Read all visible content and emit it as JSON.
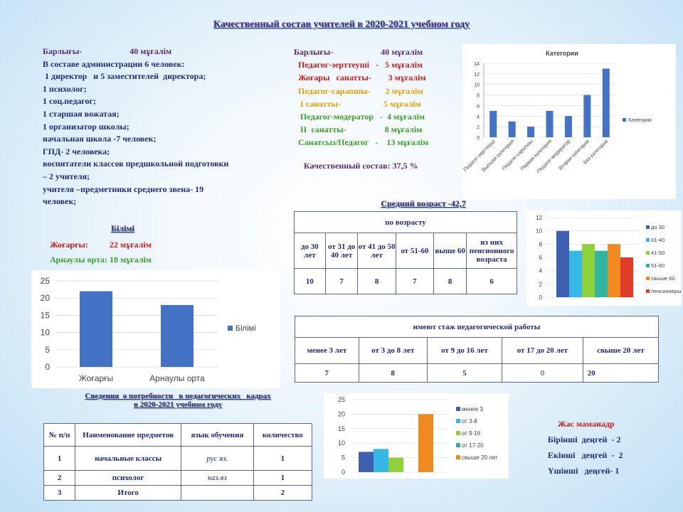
{
  "title": "Качественный состав учителей в 2020-2021  учебном году",
  "left_block": {
    "total_label": "Барлығы-",
    "total_value": "40 мұғалім",
    "lines": [
      "В составе   администрации   6 человек:",
      " 1 директор   и 5 заместителей  директора;",
      "1 психолог;",
      "1 соц.педагог;",
      "1 старшая   вожатая;",
      "1 организатор   школы;",
      "начальная   школа   -7 человек;",
      "ГПД-  2 человека;",
      "воспитатели   классов  предшкольной   подготовки",
      "– 2 учителя;",
      "учителя  –предметники   среднего  звена-  19",
      "человек;"
    ]
  },
  "mid_block": {
    "total_label": "Барлығы-",
    "total_value": "40 мұғалім",
    "lines": [
      {
        "text": "Педагог-зерттеуші   -   5 мұғалім",
        "color": "#d01a1a"
      },
      {
        "text": "Жоғары   санатты-        3 мұғалім",
        "color": "#d01a1a"
      },
      {
        "text": "Педагог-сарапшы-       2 мұғалім",
        "color": "#e8a000"
      },
      {
        "text": " I санатты-                    5 мұғалім",
        "color": "#e8a000"
      },
      {
        "text": " Педагог-модератор   -  4 мұғалім",
        "color": "#3aa02a"
      },
      {
        "text": " II  санатты-                  8 мұғалім",
        "color": "#3aa02a"
      },
      {
        "text": "Санатсыз/Педагог   -    13 мұғалім",
        "color": "#3aa02a"
      }
    ],
    "quality": "Качественный   состав:   37,5 %"
  },
  "education": {
    "heading": "Білімі",
    "higher": "Жоғарғы:          22 мұғалім",
    "special": "Арнаулы  орта:  18 мұғалім"
  },
  "age": {
    "heading": "Средний  возраст  -42,7",
    "table_header": "по  возрасту",
    "columns": [
      "до 30 лет",
      "от 31 до 40 лет",
      "от 41 до 50 лет",
      "от 51-60",
      "выше 60",
      "из них пенсионного возраста"
    ],
    "values": [
      "10",
      "7",
      "8",
      "7",
      "8",
      "6"
    ]
  },
  "experience": {
    "table_header": "имеют  стаж педагогической  работы",
    "columns": [
      "менее 3 лет",
      "от 3 до 8 лет",
      "от 9 до 16 лет",
      "от 17 до 20 лет",
      "свыше  20 лет"
    ],
    "values": [
      "7",
      "8",
      "5",
      "0",
      "20"
    ]
  },
  "needs": {
    "heading_line1": "Сведения  о потребности   в педагогических   кадрах",
    "heading_line2": "в  2020-2021 учебном  году",
    "columns": [
      "№ п/п",
      "Наименование предметов",
      "язык обучения",
      "количество"
    ],
    "rows": [
      [
        "1",
        "начальные классы",
        "рус яз.",
        "1"
      ],
      [
        "2",
        "психолог",
        "каз.яз",
        "1"
      ],
      [
        "3",
        "Итого",
        "",
        "2"
      ]
    ]
  },
  "young": {
    "heading": "Жас  маманадр",
    "lines": [
      "Бірінші  деңгей  - 2",
      "Екінші   деңгей  -  2",
      "Үшінші   деңгей- 1"
    ]
  },
  "chart_data": [
    {
      "type": "bar",
      "title": "Категории",
      "categories": [
        "Педагог-зерттеуші",
        "Высшая категория",
        "Педагог-сарапшы",
        "Первая категория",
        "Педагог-модератор",
        "Вторая категория",
        "Без категории"
      ],
      "series": [
        {
          "name": "Категории",
          "values": [
            5,
            3,
            2,
            5,
            4,
            8,
            13
          ]
        }
      ],
      "ylim": [
        0,
        14
      ],
      "yticks": [
        0,
        2,
        4,
        6,
        8,
        10,
        12,
        14
      ],
      "color": "#4472c4",
      "legend": "right"
    },
    {
      "type": "bar",
      "title": "",
      "categories": [
        ""
      ],
      "series": [
        {
          "name": "до 30",
          "values": [
            10
          ],
          "color": "#3f5fb0"
        },
        {
          "name": "31-40",
          "values": [
            7
          ],
          "color": "#35b8e8"
        },
        {
          "name": "41-50",
          "values": [
            8
          ],
          "color": "#8fd13a"
        },
        {
          "name": "51-60",
          "values": [
            7
          ],
          "color": "#30b5a0"
        },
        {
          "name": "свыше 60",
          "values": [
            8
          ],
          "color": "#f08a20"
        },
        {
          "name": "пенсионеры",
          "values": [
            6
          ],
          "color": "#e03a2a"
        }
      ],
      "ylim": [
        0,
        12
      ],
      "yticks": [
        0,
        2,
        4,
        6,
        8,
        10,
        12
      ],
      "legend": "right"
    },
    {
      "type": "bar",
      "title": "",
      "categories": [
        "Жоғарғы",
        "Арнаулы орта"
      ],
      "series": [
        {
          "name": "Білімі",
          "values": [
            22,
            18
          ]
        }
      ],
      "ylim": [
        0,
        25
      ],
      "yticks": [
        0,
        5,
        10,
        15,
        20,
        25
      ],
      "color": "#4472c4",
      "legend": "right"
    },
    {
      "type": "bar",
      "title": "",
      "categories": [
        ""
      ],
      "series": [
        {
          "name": "менее 3",
          "values": [
            7
          ],
          "color": "#3f5fb0"
        },
        {
          "name": "от 3-8",
          "values": [
            8
          ],
          "color": "#35b8e8"
        },
        {
          "name": "от 9-16",
          "values": [
            5
          ],
          "color": "#8fd13a"
        },
        {
          "name": "от 17-20",
          "values": [
            0
          ],
          "color": "#30b5a0"
        },
        {
          "name": "свыше 20 лет",
          "values": [
            20
          ],
          "color": "#f08a20"
        }
      ],
      "ylim": [
        0,
        25
      ],
      "yticks": [
        0,
        5,
        10,
        15,
        20,
        25
      ],
      "legend": "right"
    }
  ]
}
